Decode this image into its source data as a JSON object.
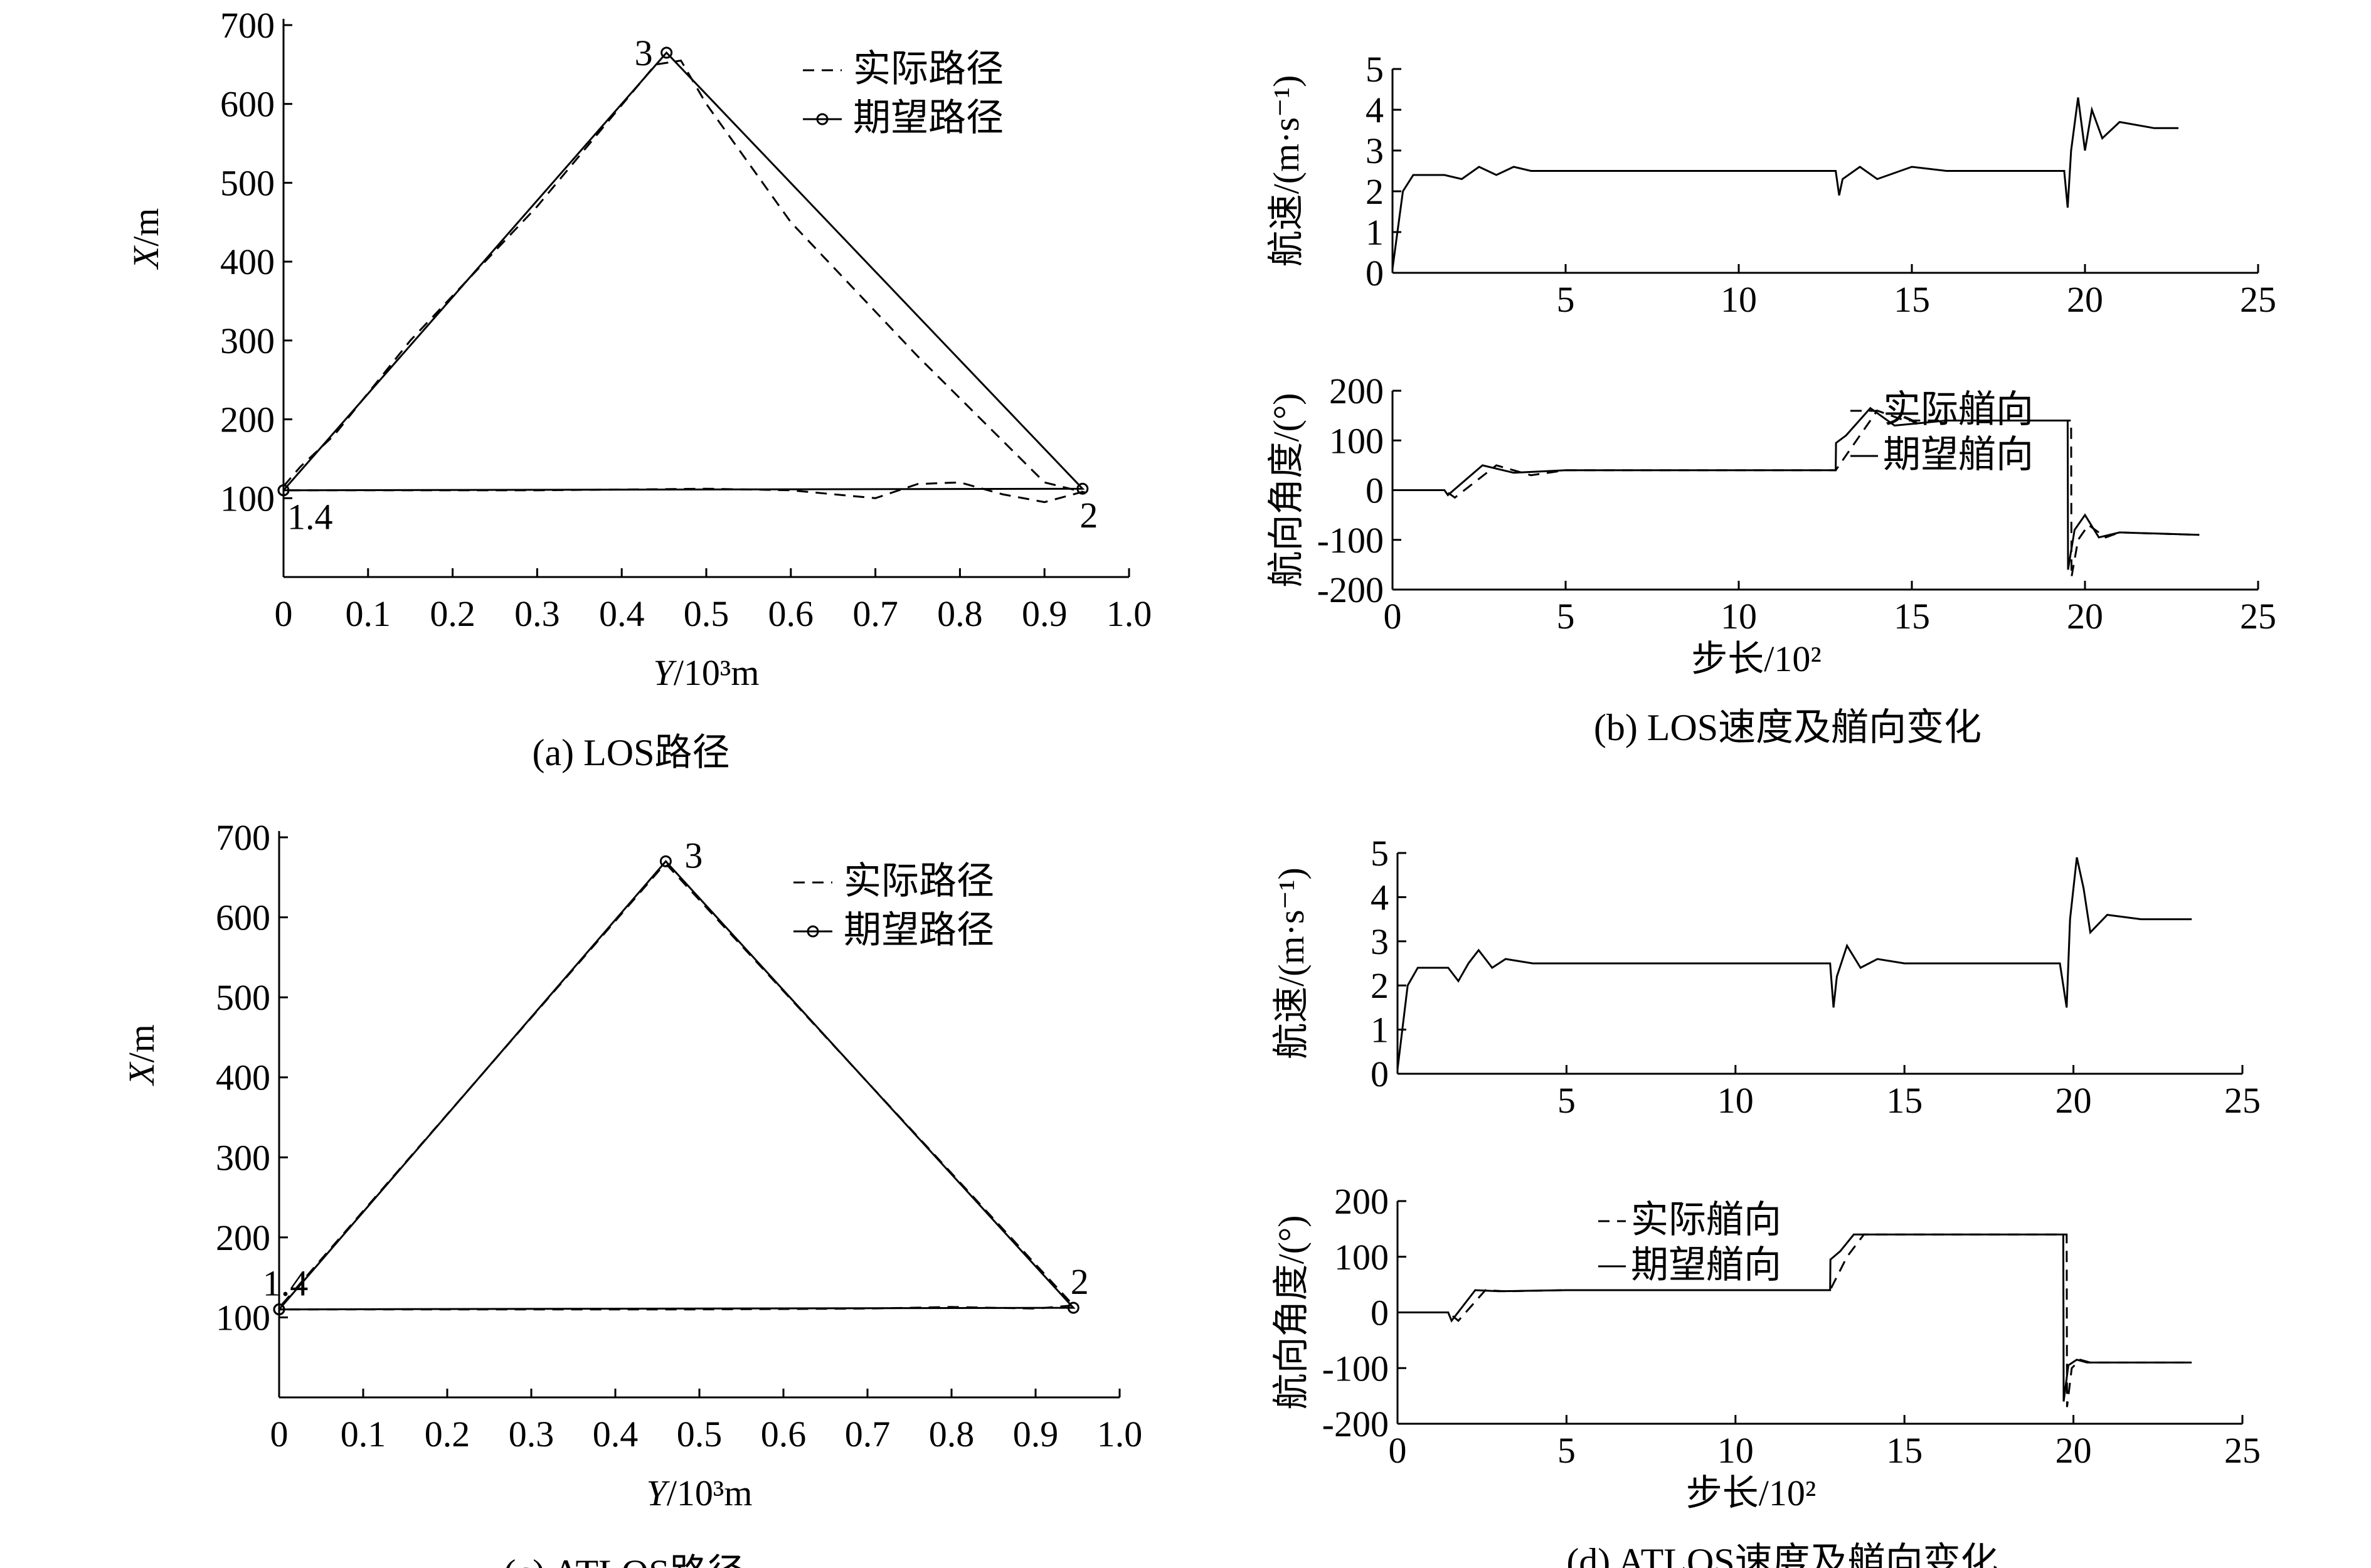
{
  "chart_data": [
    {
      "id": "a",
      "type": "line",
      "caption": "(a) LOS路径",
      "xlabel_italic": "Y",
      "xlabel_rest": "/10³m",
      "ylabel_italic": "X",
      "ylabel_rest": "/m",
      "xlim": [
        0,
        1.0
      ],
      "ylim": [
        0,
        700
      ],
      "xticks": [
        0,
        0.1,
        0.2,
        0.3,
        0.4,
        0.5,
        0.6,
        0.7,
        0.8,
        0.9,
        1.0
      ],
      "xtick_labels": [
        "0",
        "0.1",
        "0.2",
        "0.3",
        "0.4",
        "0.5",
        "0.6",
        "0.7",
        "0.8",
        "0.9",
        "1.0"
      ],
      "yticks": [
        100,
        200,
        300,
        400,
        500,
        600,
        700
      ],
      "ytick_labels": [
        "100",
        "200",
        "300",
        "400",
        "500",
        "600",
        "700"
      ],
      "legend": {
        "position": "top-right",
        "entries": [
          "实际路径",
          "期望路径"
        ]
      },
      "point_labels": [
        {
          "text": "1.4",
          "x": 0.0,
          "y": 110,
          "pos": "below-right"
        },
        {
          "text": "2",
          "x": 0.945,
          "y": 112,
          "pos": "below"
        },
        {
          "text": "3",
          "x": 0.453,
          "y": 665,
          "pos": "left"
        }
      ],
      "series": [
        {
          "name": "期望路径",
          "style": "solid-marker",
          "x": [
            0.0,
            0.453,
            0.945,
            0.0
          ],
          "y": [
            110,
            665,
            112,
            110
          ]
        },
        {
          "name": "实际路径",
          "style": "dashed",
          "x": [
            0.0,
            0.02,
            0.06,
            0.15,
            0.3,
            0.44,
            0.47,
            0.5,
            0.6,
            0.75,
            0.9,
            0.945,
            0.9,
            0.85,
            0.8,
            0.75,
            0.7,
            0.6,
            0.5,
            0.4,
            0.3,
            0.15,
            0.0
          ],
          "y": [
            115,
            140,
            180,
            300,
            470,
            650,
            655,
            600,
            450,
            280,
            120,
            108,
            95,
            105,
            120,
            118,
            100,
            110,
            112,
            111,
            110,
            110,
            110
          ]
        }
      ]
    },
    {
      "id": "b",
      "caption": "(b) LOS速度及艏向变化",
      "subplots": [
        {
          "type": "line",
          "ylabel": "航速/(m·s⁻¹)",
          "xlim": [
            0,
            25
          ],
          "ylim": [
            0,
            5
          ],
          "xticks": [
            5,
            10,
            15,
            20,
            25
          ],
          "xtick_labels": [
            "5",
            "10",
            "15",
            "20",
            "25"
          ],
          "yticks": [
            0,
            1,
            2,
            3,
            4,
            5
          ],
          "ytick_labels": [
            "0",
            "1",
            "2",
            "3",
            "4",
            "5"
          ],
          "series": [
            {
              "name": "",
              "style": "solid",
              "x": [
                0,
                0.3,
                0.6,
                1.5,
                2.0,
                2.5,
                3.0,
                3.5,
                4.0,
                5.0,
                12.8,
                12.9,
                13.0,
                13.5,
                14.0,
                15.0,
                16.0,
                19.4,
                19.5,
                19.6,
                19.8,
                20.0,
                20.2,
                20.5,
                21.0,
                22.0,
                22.7
              ],
              "y": [
                0.1,
                2.0,
                2.4,
                2.4,
                2.3,
                2.6,
                2.4,
                2.6,
                2.5,
                2.5,
                2.5,
                1.9,
                2.3,
                2.6,
                2.3,
                2.6,
                2.5,
                2.5,
                1.6,
                3.0,
                4.3,
                3.0,
                4.0,
                3.3,
                3.7,
                3.55,
                3.55
              ]
            }
          ]
        },
        {
          "type": "line",
          "ylabel": "航向角度/(°)",
          "xlabel": "步长/10²",
          "xlim": [
            0,
            25
          ],
          "ylim": [
            -200,
            200
          ],
          "xticks": [
            0,
            5,
            10,
            15,
            20,
            25
          ],
          "xtick_labels": [
            "0",
            "5",
            "10",
            "15",
            "20",
            "25"
          ],
          "yticks": [
            -200,
            -100,
            0,
            100,
            200
          ],
          "ytick_labels": [
            "-200",
            "-100",
            "0",
            "100",
            "200"
          ],
          "legend": {
            "position": "top-right",
            "entries": [
              "实际艏向",
              "期望艏向"
            ]
          },
          "series": [
            {
              "name": "期望艏向",
              "style": "solid",
              "x": [
                0,
                1.5,
                1.6,
                2.6,
                3.5,
                5,
                12.8,
                12.81,
                13.1,
                13.8,
                14.5,
                16,
                19.5,
                19.51,
                19.7,
                20.0,
                20.4,
                21.0,
                23.3
              ],
              "y": [
                0,
                0,
                -10,
                50,
                35,
                40,
                40,
                95,
                110,
                165,
                130,
                140,
                140,
                -160,
                -80,
                -50,
                -95,
                -85,
                -90
              ]
            },
            {
              "name": "实际艏向",
              "style": "dashed",
              "x": [
                0,
                1.5,
                1.8,
                3.0,
                4.0,
                5,
                12.8,
                13.2,
                14.0,
                14.8,
                16,
                19.6,
                19.61,
                19.8,
                20.1,
                20.6,
                21.0,
                23.3
              ],
              "y": [
                0,
                0,
                -15,
                50,
                30,
                40,
                40,
                80,
                160,
                140,
                140,
                140,
                -175,
                -100,
                -70,
                -95,
                -85,
                -90
              ]
            }
          ]
        }
      ]
    },
    {
      "id": "c",
      "type": "line",
      "caption": "(c) ATLOS路径",
      "xlabel_italic": "Y",
      "xlabel_rest": "/10³m",
      "ylabel_italic": "X",
      "ylabel_rest": "/m",
      "xlim": [
        0,
        1.0
      ],
      "ylim": [
        0,
        700
      ],
      "xticks": [
        0,
        0.1,
        0.2,
        0.3,
        0.4,
        0.5,
        0.6,
        0.7,
        0.8,
        0.9,
        1.0
      ],
      "xtick_labels": [
        "0",
        "0.1",
        "0.2",
        "0.3",
        "0.4",
        "0.5",
        "0.6",
        "0.7",
        "0.8",
        "0.9",
        "1.0"
      ],
      "yticks": [
        100,
        200,
        300,
        400,
        500,
        600,
        700
      ],
      "ytick_labels": [
        "100",
        "200",
        "300",
        "400",
        "500",
        "600",
        "700"
      ],
      "legend": {
        "position": "top-right",
        "entries": [
          "实际路径",
          "期望路径"
        ]
      },
      "point_labels": [
        {
          "text": "1.4",
          "x": 0.0,
          "y": 110,
          "pos": "above"
        },
        {
          "text": "2",
          "x": 0.945,
          "y": 112,
          "pos": "above"
        },
        {
          "text": "3",
          "x": 0.46,
          "y": 670,
          "pos": "right"
        }
      ],
      "series": [
        {
          "name": "期望路径",
          "style": "solid-marker",
          "x": [
            0.0,
            0.46,
            0.945,
            0.0
          ],
          "y": [
            110,
            670,
            112,
            110
          ]
        },
        {
          "name": "实际路径",
          "style": "dashed",
          "x": [
            0.0,
            0.0,
            0.0,
            0.455,
            0.462,
            0.945,
            0.9,
            0.8,
            0.7,
            0.5,
            0.0
          ],
          "y": [
            0,
            50,
            112,
            662,
            665,
            115,
            111,
            113,
            111,
            110,
            110
          ]
        }
      ]
    },
    {
      "id": "d",
      "caption": "(d) ATLOS速度及艏向变化",
      "subplots": [
        {
          "type": "line",
          "ylabel": "航速/(m·s⁻¹)",
          "xlim": [
            0,
            25
          ],
          "ylim": [
            0,
            5
          ],
          "xticks": [
            5,
            10,
            15,
            20,
            25
          ],
          "xtick_labels": [
            "5",
            "10",
            "15",
            "20",
            "25"
          ],
          "yticks": [
            0,
            1,
            2,
            3,
            4,
            5
          ],
          "ytick_labels": [
            "0",
            "1",
            "2",
            "3",
            "4",
            "5"
          ],
          "series": [
            {
              "name": "",
              "style": "solid",
              "x": [
                0,
                0.3,
                0.6,
                1.5,
                1.8,
                2.1,
                2.4,
                2.8,
                3.2,
                4.0,
                5.0,
                12.8,
                12.9,
                13.0,
                13.3,
                13.7,
                14.2,
                15.0,
                16.0,
                19.6,
                19.8,
                19.9,
                20.1,
                20.3,
                20.5,
                21.0,
                22.0,
                23.5
              ],
              "y": [
                0.1,
                2.0,
                2.4,
                2.4,
                2.1,
                2.5,
                2.8,
                2.4,
                2.6,
                2.5,
                2.5,
                2.5,
                1.5,
                2.2,
                2.9,
                2.4,
                2.6,
                2.5,
                2.5,
                2.5,
                1.5,
                3.5,
                4.9,
                4.2,
                3.2,
                3.6,
                3.5,
                3.5
              ]
            }
          ]
        },
        {
          "type": "line",
          "ylabel": "航向角度/(°)",
          "xlabel": "步长/10²",
          "xlim": [
            0,
            25
          ],
          "ylim": [
            -200,
            200
          ],
          "xticks": [
            0,
            5,
            10,
            15,
            20,
            25
          ],
          "xtick_labels": [
            "0",
            "5",
            "10",
            "15",
            "20",
            "25"
          ],
          "yticks": [
            -200,
            -100,
            0,
            100,
            200
          ],
          "ytick_labels": [
            "-200",
            "-100",
            "0",
            "100",
            "200"
          ],
          "legend": {
            "position": "top-left",
            "entries": [
              "实际艏向",
              "期望艏向"
            ]
          },
          "series": [
            {
              "name": "期望艏向",
              "style": "solid",
              "x": [
                0,
                1.5,
                1.6,
                2.3,
                3.0,
                5,
                12.8,
                12.81,
                13.1,
                13.5,
                14.0,
                19.7,
                19.71,
                19.85,
                20.1,
                20.4,
                23.5
              ],
              "y": [
                0,
                0,
                -15,
                40,
                38,
                40,
                40,
                95,
                110,
                140,
                140,
                140,
                -160,
                -95,
                -85,
                -90,
                -90
              ]
            },
            {
              "name": "实际艏向",
              "style": "dashed",
              "x": [
                0,
                1.5,
                1.8,
                2.6,
                3.2,
                5,
                12.8,
                13.3,
                13.8,
                14.2,
                19.8,
                19.81,
                19.95,
                20.2,
                20.5,
                23.5
              ],
              "y": [
                0,
                0,
                -15,
                40,
                38,
                40,
                40,
                100,
                140,
                140,
                140,
                -170,
                -100,
                -85,
                -90,
                -90
              ]
            }
          ]
        }
      ]
    }
  ]
}
